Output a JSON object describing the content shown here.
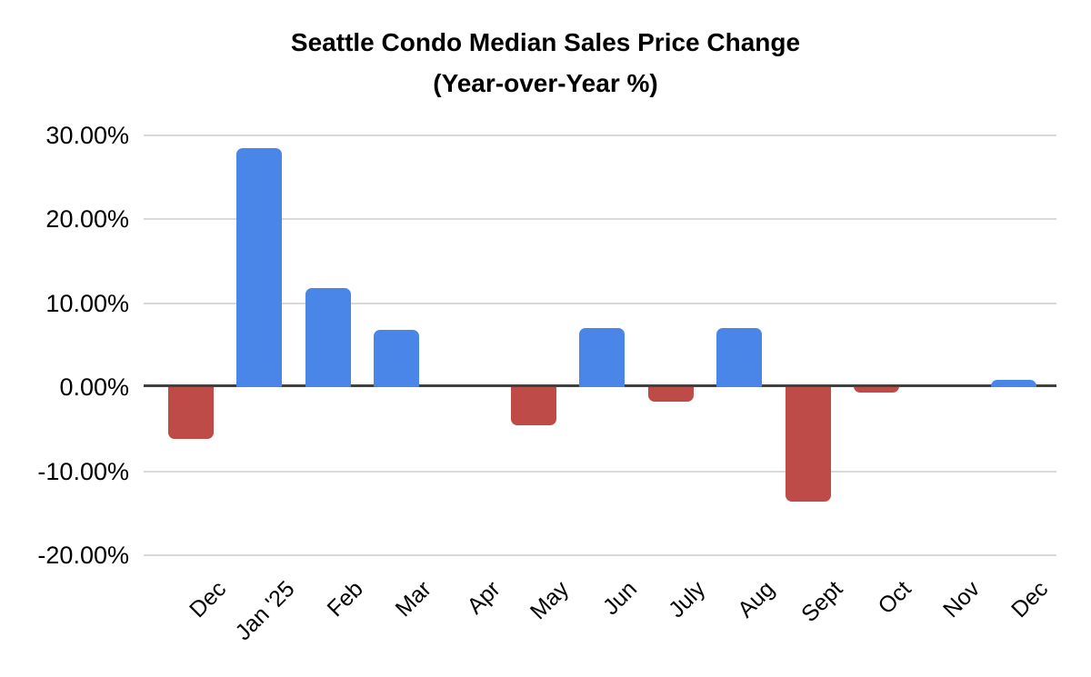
{
  "chart_data": {
    "type": "bar",
    "title": "Seattle Condo Median Sales Price Change",
    "subtitle": "(Year-over-Year %)",
    "categories": [
      "Dec",
      "Jan '25",
      "Feb",
      "Mar",
      "Apr",
      "May",
      "Jun",
      "July",
      "Aug",
      "Sept",
      "Oct",
      "Nov",
      "Dec"
    ],
    "values": [
      -6.2,
      28.4,
      11.8,
      6.8,
      0,
      -4.5,
      7.0,
      -1.7,
      7.0,
      -13.6,
      -0.6,
      0,
      0.9
    ],
    "value_unit": "percent year-over-year",
    "ylim": [
      -20,
      30
    ],
    "yticks": [
      30,
      20,
      10,
      0,
      -10,
      -20
    ],
    "ytick_labels": [
      "30.00%",
      "20.00%",
      "10.00%",
      "0.00%",
      "-10.00%",
      "-20.00%"
    ],
    "grid": true,
    "legend": "none",
    "x_label_rotation_deg": -45,
    "color_rule": "positive values blue, negative values red",
    "colors": {
      "positive_bar": "#4a86e8",
      "negative_bar": "#be4b48",
      "gridline": "#d9d9d9",
      "zero_line": "#404040",
      "text": "#000000",
      "background": "#ffffff"
    }
  }
}
